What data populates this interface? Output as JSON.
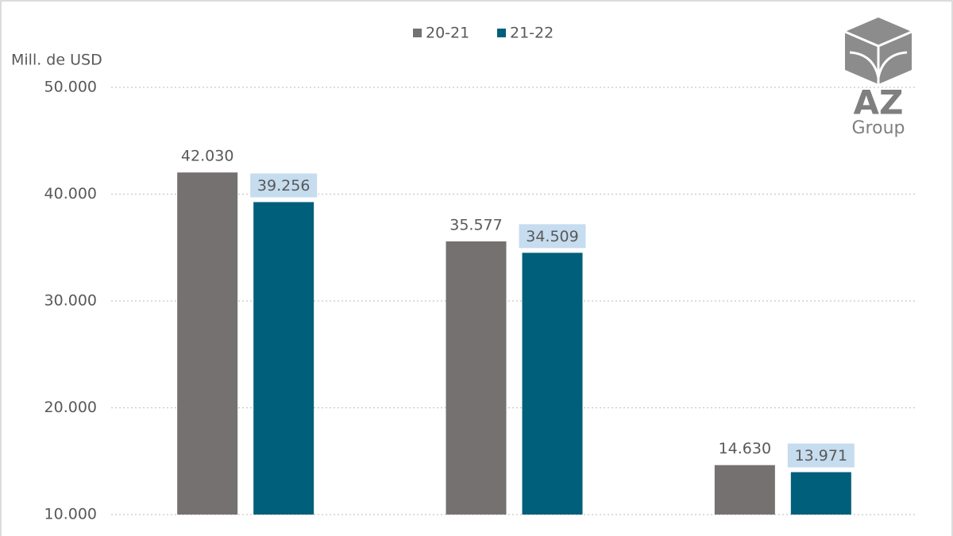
{
  "chart_data": {
    "type": "bar",
    "y_axis_label": "Mill. de USD",
    "categories": [
      null,
      null,
      null
    ],
    "series": [
      {
        "name": "20-21",
        "color": "#767171",
        "values": [
          42030,
          35577,
          14630
        ],
        "value_labels": [
          "42.030",
          "35.577",
          "14.630"
        ]
      },
      {
        "name": "21-22",
        "color": "#005f7a",
        "values": [
          39256,
          34509,
          13971
        ],
        "value_labels": [
          "39.256",
          "34.509",
          "13.971"
        ],
        "label_background": "#c6dcef"
      }
    ],
    "ylim": [
      10000,
      50000
    ],
    "yticks": [
      {
        "value": 10000,
        "label": "10.000"
      },
      {
        "value": 20000,
        "label": "20.000"
      },
      {
        "value": 30000,
        "label": "30.000"
      },
      {
        "value": 40000,
        "label": "40.000"
      },
      {
        "value": 50000,
        "label": "50.000"
      }
    ],
    "grid": true,
    "legend": "top"
  },
  "logo": {
    "name": "AZ",
    "subname": "Group"
  }
}
